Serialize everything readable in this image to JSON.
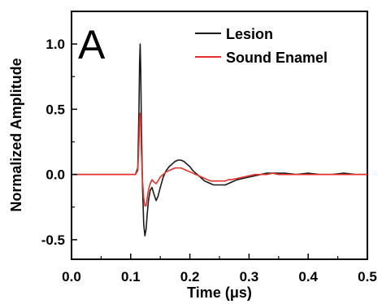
{
  "chart_data": {
    "type": "line",
    "panel_label": "A",
    "xlabel": "Time (μs)",
    "ylabel": "Normalized Amplitude",
    "xlim": [
      0.0,
      0.5
    ],
    "ylim": [
      -0.65,
      1.25
    ],
    "x_ticks": [
      0.0,
      0.1,
      0.2,
      0.3,
      0.4,
      0.5
    ],
    "x_tick_labels": [
      "0.0",
      "0.1",
      "0.2",
      "0.3",
      "0.4",
      "0.5"
    ],
    "y_ticks": [
      -0.5,
      0.0,
      0.5,
      1.0
    ],
    "y_tick_labels": [
      "-0.5",
      "0.0",
      "0.5",
      "1.0"
    ],
    "grid": false,
    "legend_position": "top-right",
    "series": [
      {
        "name": "Lesion",
        "color": "#1a1a1a",
        "x": [
          0.0,
          0.05,
          0.1,
          0.108,
          0.112,
          0.114,
          0.115,
          0.116,
          0.117,
          0.118,
          0.12,
          0.122,
          0.124,
          0.126,
          0.128,
          0.13,
          0.133,
          0.136,
          0.14,
          0.143,
          0.146,
          0.15,
          0.155,
          0.16,
          0.165,
          0.17,
          0.175,
          0.18,
          0.185,
          0.19,
          0.195,
          0.2,
          0.205,
          0.21,
          0.215,
          0.22,
          0.225,
          0.23,
          0.235,
          0.24,
          0.245,
          0.25,
          0.255,
          0.26,
          0.265,
          0.27,
          0.28,
          0.29,
          0.3,
          0.31,
          0.32,
          0.33,
          0.34,
          0.35,
          0.36,
          0.38,
          0.4,
          0.42,
          0.44,
          0.46,
          0.48,
          0.5
        ],
        "y": [
          0.0,
          0.0,
          0.0,
          0.0,
          0.05,
          0.5,
          0.85,
          1.0,
          0.8,
          0.4,
          -0.1,
          -0.38,
          -0.47,
          -0.42,
          -0.3,
          -0.2,
          -0.12,
          -0.1,
          -0.16,
          -0.2,
          -0.17,
          -0.1,
          -0.02,
          0.03,
          0.06,
          0.08,
          0.1,
          0.11,
          0.11,
          0.1,
          0.08,
          0.06,
          0.03,
          0.01,
          -0.01,
          -0.03,
          -0.05,
          -0.06,
          -0.07,
          -0.08,
          -0.08,
          -0.08,
          -0.08,
          -0.08,
          -0.07,
          -0.06,
          -0.04,
          -0.03,
          -0.02,
          -0.01,
          0.0,
          0.01,
          0.01,
          0.01,
          0.01,
          0.0,
          0.01,
          0.0,
          0.0,
          0.01,
          0.0,
          0.0
        ]
      },
      {
        "name": "Sound Enamel",
        "color": "#e8302a",
        "x": [
          0.0,
          0.05,
          0.1,
          0.108,
          0.112,
          0.114,
          0.115,
          0.116,
          0.117,
          0.118,
          0.12,
          0.122,
          0.124,
          0.126,
          0.128,
          0.13,
          0.133,
          0.136,
          0.14,
          0.143,
          0.146,
          0.15,
          0.155,
          0.16,
          0.165,
          0.17,
          0.175,
          0.18,
          0.185,
          0.19,
          0.195,
          0.2,
          0.205,
          0.21,
          0.215,
          0.22,
          0.225,
          0.23,
          0.235,
          0.24,
          0.245,
          0.25,
          0.255,
          0.26,
          0.265,
          0.27,
          0.28,
          0.29,
          0.3,
          0.31,
          0.32,
          0.33,
          0.34,
          0.35,
          0.36,
          0.38,
          0.4,
          0.42,
          0.44,
          0.46,
          0.48,
          0.5
        ],
        "y": [
          0.0,
          0.0,
          0.0,
          0.0,
          0.03,
          0.25,
          0.42,
          0.47,
          0.38,
          0.18,
          -0.05,
          -0.18,
          -0.24,
          -0.24,
          -0.18,
          -0.12,
          -0.07,
          -0.04,
          -0.06,
          -0.07,
          -0.05,
          -0.02,
          0.0,
          0.02,
          0.03,
          0.04,
          0.05,
          0.05,
          0.05,
          0.04,
          0.03,
          0.02,
          0.01,
          0.0,
          -0.01,
          -0.02,
          -0.03,
          -0.04,
          -0.05,
          -0.05,
          -0.05,
          -0.05,
          -0.05,
          -0.05,
          -0.04,
          -0.04,
          -0.03,
          -0.02,
          -0.01,
          0.0,
          0.0,
          0.0,
          0.01,
          0.0,
          0.0,
          0.0,
          0.0,
          0.0,
          0.0,
          0.0,
          0.0,
          0.0
        ]
      }
    ]
  }
}
